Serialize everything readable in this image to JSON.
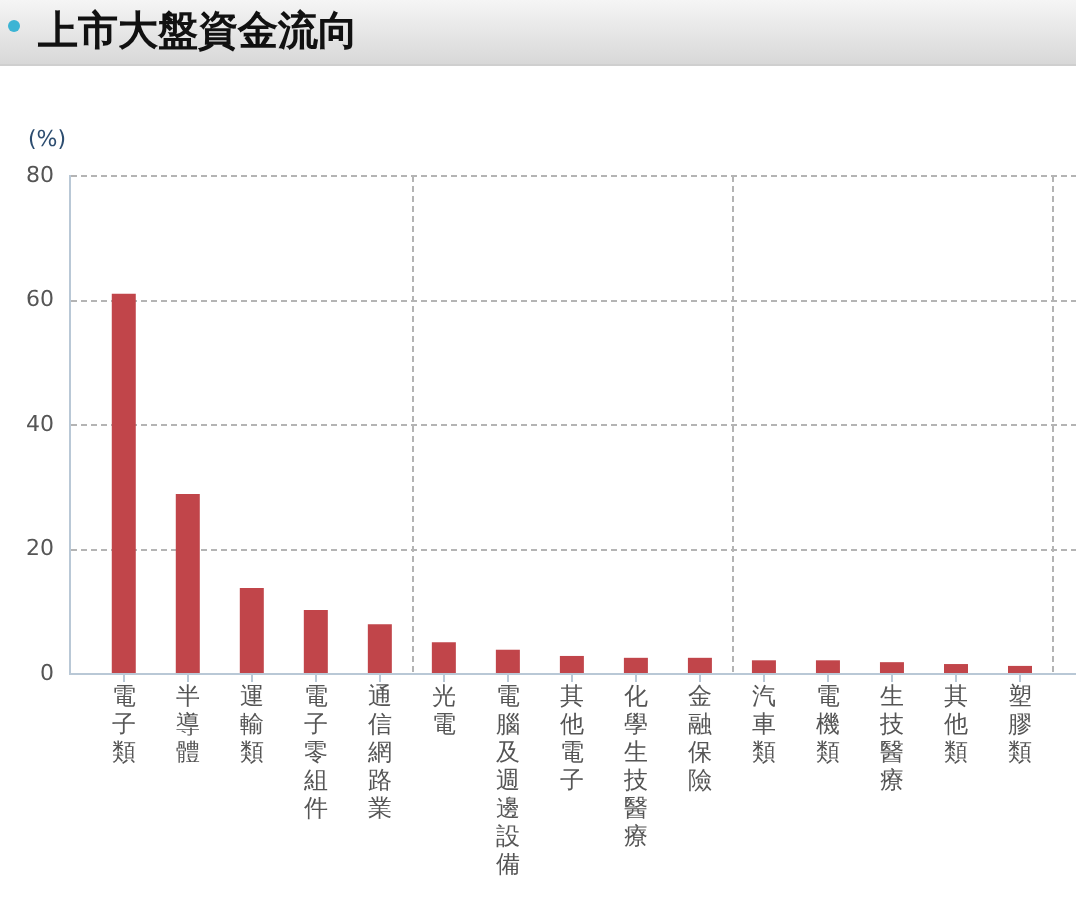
{
  "chart_data": {
    "type": "bar",
    "title": "上市大盤資金流向",
    "ylabel": "(%)",
    "categories": [
      "電子類",
      "半導體",
      "運輸類",
      "電子零組件",
      "通信網路業",
      "光電",
      "電腦及週邊設備",
      "其他電子",
      "化學生技醫療",
      "金融保險",
      "汽車類",
      "電機類",
      "生技醫療",
      "其他類",
      "塑膠類"
    ],
    "values": [
      61.1,
      28.9,
      13.8,
      10.3,
      8.0,
      5.1,
      3.9,
      2.9,
      2.6,
      2.6,
      2.2,
      2.2,
      1.9,
      1.6,
      1.3
    ],
    "color": "#c1454a",
    "ylim": [
      0,
      80
    ],
    "yticks": [
      0,
      20,
      40,
      60,
      80
    ],
    "grid": true
  }
}
